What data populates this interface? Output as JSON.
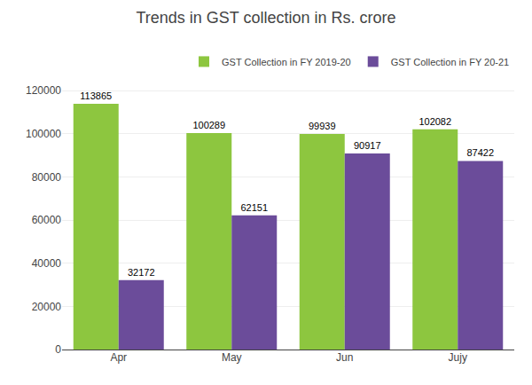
{
  "chart_data": {
    "type": "bar",
    "title": "Trends in GST collection in Rs. crore",
    "categories": [
      "Apr",
      "May",
      "Jun",
      "Jujy"
    ],
    "series": [
      {
        "name": "GST Collection in FY 2019-20",
        "color": "#8DC63F",
        "values": [
          113865,
          100289,
          99939,
          102082
        ]
      },
      {
        "name": "GST Collection in FY 20-21",
        "color": "#6B4C9A",
        "values": [
          32172,
          62151,
          90917,
          87422
        ]
      }
    ],
    "ylim": [
      0,
      125000
    ],
    "yticks": [
      0,
      20000,
      40000,
      60000,
      80000,
      100000,
      120000
    ],
    "grid": true,
    "legend": "upper right",
    "data_labels": true
  }
}
